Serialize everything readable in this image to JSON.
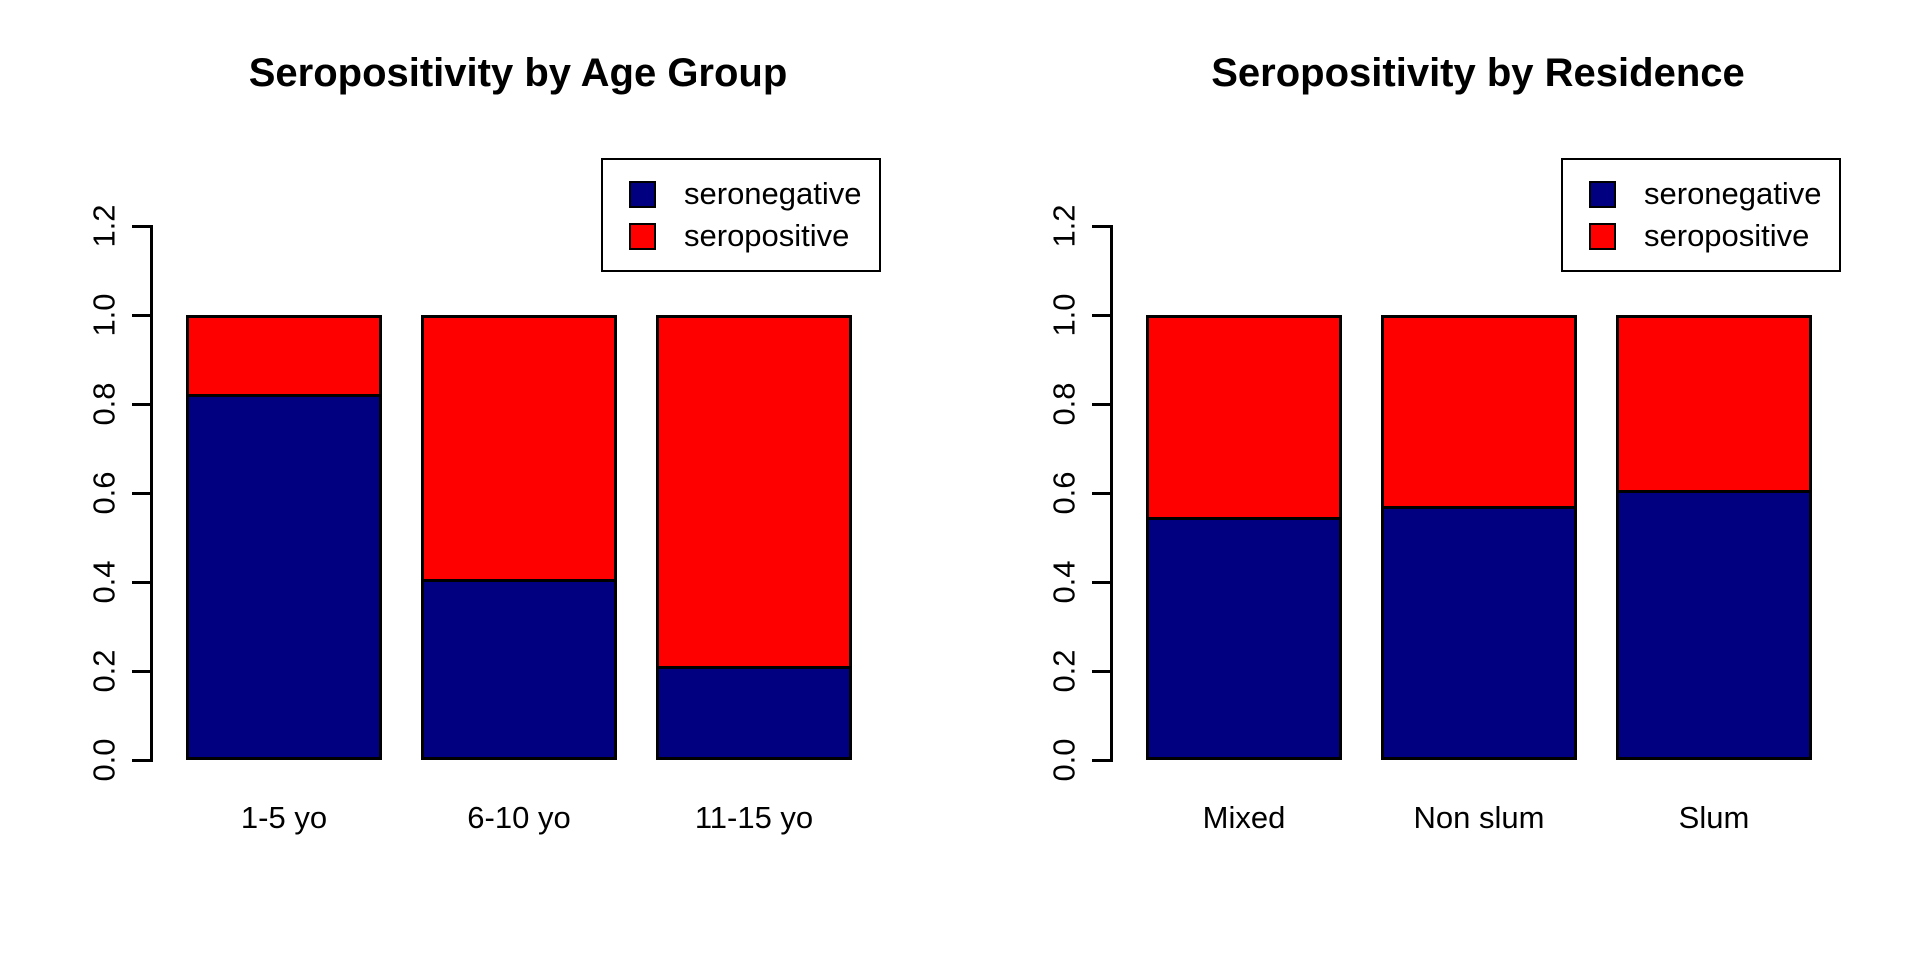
{
  "page": {
    "background_color": "#FFFFFF",
    "text_color": "#000000"
  },
  "chart_data": [
    {
      "type": "bar",
      "subtype": "stacked-proportion",
      "title": "Seropositivity by Age Group",
      "categories": [
        "1-5 yo",
        "6-10 yo",
        "11-15 yo"
      ],
      "series": [
        {
          "name": "seronegative",
          "color": "#000080",
          "values": [
            0.815,
            0.4,
            0.205
          ]
        },
        {
          "name": "seropositive",
          "color": "#FF0000",
          "values": [
            0.185,
            0.6,
            0.795
          ]
        }
      ],
      "xlabel": "",
      "ylabel": "",
      "ylim": [
        0,
        1.2
      ],
      "y_tick_labels": [
        "0.0",
        "0.2",
        "0.4",
        "0.6",
        "0.8",
        "1.0",
        "1.2"
      ],
      "grid": false,
      "legend_position": "topright",
      "legend_labels": [
        "seronegative",
        "seropositive"
      ]
    },
    {
      "type": "bar",
      "subtype": "stacked-proportion",
      "title": "Seropositivity by Residence",
      "categories": [
        "Mixed",
        "Non slum",
        "Slum"
      ],
      "series": [
        {
          "name": "seronegative",
          "color": "#000080",
          "values": [
            0.54,
            0.565,
            0.6
          ]
        },
        {
          "name": "seropositive",
          "color": "#FF0000",
          "values": [
            0.46,
            0.435,
            0.4
          ]
        }
      ],
      "xlabel": "",
      "ylabel": "",
      "ylim": [
        0,
        1.2
      ],
      "y_tick_labels": [
        "0.0",
        "0.2",
        "0.4",
        "0.6",
        "0.8",
        "1.0",
        "1.2"
      ],
      "grid": false,
      "legend_position": "topright",
      "legend_labels": [
        "seronegative",
        "seropositive"
      ]
    }
  ]
}
